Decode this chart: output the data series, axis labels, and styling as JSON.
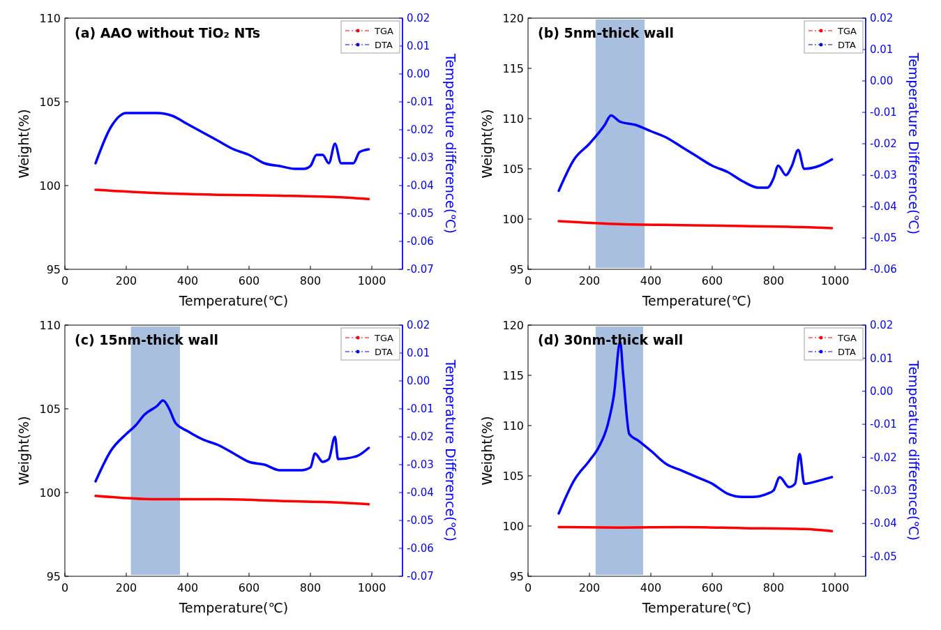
{
  "chart_data": [
    {
      "type": "line",
      "title": "(a) AAO without TiO₂ NTs",
      "xlabel": "Temperature(℃)",
      "ylabel": "Weight(%)",
      "y2label": "Temperature difference(℃)",
      "xlim": [
        0,
        1100
      ],
      "xticks": [
        0,
        200,
        400,
        600,
        800,
        1000
      ],
      "ylim": [
        95,
        110
      ],
      "yticks": [
        95,
        100,
        105,
        110
      ],
      "y2lim": [
        -0.07,
        0.02
      ],
      "y2ticks": [
        {
          "value": 0.02,
          "label": "0.02"
        },
        {
          "value": 0.01,
          "label": "0.01"
        },
        {
          "value": 0,
          "label": "0.00"
        },
        {
          "value": -0.01,
          "label": "-0.01"
        },
        {
          "value": -0.02,
          "label": "-0.02"
        },
        {
          "value": -0.03,
          "label": "-0.03"
        },
        {
          "value": -0.04,
          "label": "-0.04"
        },
        {
          "value": -0.05,
          "label": "-0.05"
        },
        {
          "value": -0.06,
          "label": "-0.06"
        },
        {
          "value": -0.07,
          "label": "-0.07"
        }
      ],
      "legend": "top right",
      "series": [
        {
          "name": "TGA",
          "color": "#ff0000",
          "x": [
            100,
            300,
            500,
            700,
            900,
            990
          ],
          "values": [
            99.75,
            99.55,
            99.45,
            99.4,
            99.3,
            99.2
          ]
        },
        {
          "name": "DTA",
          "color": "#0000ff",
          "axis": "y2",
          "x": [
            100,
            150,
            200,
            250,
            300,
            350,
            400,
            450,
            500,
            550,
            600,
            650,
            700,
            750,
            780,
            800,
            820,
            840,
            860,
            880,
            900,
            940,
            960,
            990
          ],
          "values": [
            -0.032,
            -0.019,
            -0.014,
            -0.014,
            -0.014,
            -0.015,
            -0.018,
            -0.021,
            -0.024,
            -0.027,
            -0.029,
            -0.032,
            -0.033,
            -0.034,
            -0.034,
            -0.033,
            -0.029,
            -0.029,
            -0.032,
            -0.025,
            -0.032,
            -0.032,
            -0.028,
            -0.027
          ]
        }
      ]
    },
    {
      "type": "line",
      "title": "(b) 5nm-thick wall",
      "xlabel": "Temperature(℃)",
      "ylabel": "Weight(%)",
      "y2label": "Temperature Difference(℃)",
      "xlim": [
        0,
        1100
      ],
      "xticks": [
        0,
        200,
        400,
        600,
        800,
        1000
      ],
      "ylim": [
        95,
        120
      ],
      "yticks": [
        95,
        100,
        105,
        110,
        115,
        120
      ],
      "y2lim": [
        -0.06,
        0.02
      ],
      "y2ticks": [
        {
          "value": 0.02,
          "label": "0.02"
        },
        {
          "value": 0.01,
          "label": "0.01"
        },
        {
          "value": 0,
          "label": "0.00"
        },
        {
          "value": -0.01,
          "label": "-0.01"
        },
        {
          "value": -0.02,
          "label": "-0.02"
        },
        {
          "value": -0.03,
          "label": "-0.03"
        },
        {
          "value": -0.04,
          "label": "-0.04"
        },
        {
          "value": -0.05,
          "label": "-0.05"
        },
        {
          "value": -0.06,
          "label": "-0.06"
        }
      ],
      "legend": "top right",
      "bands": [
        {
          "axis": "x",
          "from": 220,
          "to": 380,
          "color": "#a9bfe0"
        }
      ],
      "series": [
        {
          "name": "TGA",
          "color": "#ff0000",
          "x": [
            100,
            300,
            500,
            700,
            900,
            990
          ],
          "values": [
            99.8,
            99.5,
            99.4,
            99.3,
            99.2,
            99.1
          ]
        },
        {
          "name": "DTA",
          "color": "#0000ff",
          "axis": "y2",
          "x": [
            100,
            150,
            200,
            250,
            270,
            300,
            350,
            400,
            450,
            500,
            550,
            600,
            650,
            700,
            750,
            780,
            800,
            815,
            840,
            860,
            880,
            900,
            950,
            990
          ],
          "values": [
            -0.035,
            -0.025,
            -0.02,
            -0.014,
            -0.011,
            -0.013,
            -0.014,
            -0.016,
            -0.018,
            -0.021,
            -0.024,
            -0.027,
            -0.029,
            -0.032,
            -0.034,
            -0.034,
            -0.031,
            -0.027,
            -0.03,
            -0.027,
            -0.022,
            -0.028,
            -0.027,
            -0.025
          ]
        }
      ]
    },
    {
      "type": "line",
      "title": "(c) 15nm-thick wall",
      "xlabel": "Temperature(℃)",
      "ylabel": "Weight(%)",
      "y2label": "Temperature Difference(℃)",
      "xlim": [
        0,
        1100
      ],
      "xticks": [
        0,
        200,
        400,
        600,
        800,
        1000
      ],
      "ylim": [
        95,
        110
      ],
      "yticks": [
        95,
        100,
        105,
        110
      ],
      "y2lim": [
        -0.07,
        0.02
      ],
      "y2ticks": [
        {
          "value": 0.02,
          "label": "0.02"
        },
        {
          "value": 0.01,
          "label": "0.01"
        },
        {
          "value": 0,
          "label": "0.00"
        },
        {
          "value": -0.01,
          "label": "-0.01"
        },
        {
          "value": -0.02,
          "label": "-0.02"
        },
        {
          "value": -0.03,
          "label": "-0.03"
        },
        {
          "value": -0.04,
          "label": "-0.04"
        },
        {
          "value": -0.05,
          "label": "-0.05"
        },
        {
          "value": -0.06,
          "label": "-0.06"
        },
        {
          "value": -0.07,
          "label": "-0.07"
        }
      ],
      "legend": "top right",
      "bands": [
        {
          "axis": "x",
          "from": 215,
          "to": 375,
          "color": "#a9bfe0"
        }
      ],
      "series": [
        {
          "name": "TGA",
          "color": "#ff0000",
          "x": [
            100,
            300,
            500,
            700,
            900,
            990
          ],
          "values": [
            99.8,
            99.6,
            99.6,
            99.5,
            99.4,
            99.3
          ]
        },
        {
          "name": "DTA",
          "color": "#0000ff",
          "axis": "y2",
          "x": [
            100,
            150,
            200,
            230,
            260,
            300,
            320,
            340,
            360,
            400,
            450,
            500,
            550,
            600,
            650,
            700,
            750,
            770,
            800,
            815,
            840,
            860,
            880,
            890,
            950,
            990
          ],
          "values": [
            -0.036,
            -0.025,
            -0.019,
            -0.016,
            -0.012,
            -0.009,
            -0.007,
            -0.01,
            -0.015,
            -0.018,
            -0.021,
            -0.023,
            -0.026,
            -0.029,
            -0.03,
            -0.032,
            -0.032,
            -0.032,
            -0.031,
            -0.026,
            -0.029,
            -0.028,
            -0.02,
            -0.028,
            -0.027,
            -0.024
          ]
        }
      ]
    },
    {
      "type": "line",
      "title": "(d) 30nm-thick wall",
      "xlabel": "Temperature(℃)",
      "ylabel": "Weight(%)",
      "y2label": "Temperature difference(℃)",
      "xlim": [
        0,
        1100
      ],
      "xticks": [
        0,
        200,
        400,
        600,
        800,
        1000
      ],
      "ylim": [
        95,
        120
      ],
      "yticks": [
        95,
        100,
        105,
        110,
        115,
        120
      ],
      "y2lim": [
        -0.056,
        0.02
      ],
      "y2ticks": [
        {
          "value": 0.02,
          "label": "0.02"
        },
        {
          "value": 0.01,
          "label": "0.01"
        },
        {
          "value": 0,
          "label": "0.00"
        },
        {
          "value": -0.01,
          "label": "-0.01"
        },
        {
          "value": -0.02,
          "label": "-0.02"
        },
        {
          "value": -0.03,
          "label": "-0.03"
        },
        {
          "value": -0.04,
          "label": "-0.04"
        },
        {
          "value": -0.05,
          "label": "-0.05"
        }
      ],
      "legend": "top right",
      "bands": [
        {
          "axis": "x",
          "from": 220,
          "to": 375,
          "color": "#a9bfe0"
        }
      ],
      "series": [
        {
          "name": "TGA",
          "color": "#ff0000",
          "x": [
            100,
            300,
            500,
            700,
            900,
            990
          ],
          "values": [
            99.9,
            99.85,
            99.9,
            99.8,
            99.7,
            99.5
          ]
        },
        {
          "name": "DTA",
          "color": "#0000ff",
          "axis": "y2",
          "x": [
            100,
            150,
            200,
            230,
            260,
            280,
            300,
            310,
            330,
            360,
            400,
            450,
            500,
            550,
            600,
            650,
            700,
            730,
            780,
            800,
            820,
            850,
            870,
            885,
            900,
            950,
            990
          ],
          "values": [
            -0.037,
            -0.027,
            -0.021,
            -0.017,
            -0.01,
            -0.001,
            0.015,
            0.005,
            -0.013,
            -0.015,
            -0.018,
            -0.022,
            -0.024,
            -0.026,
            -0.028,
            -0.031,
            -0.032,
            -0.032,
            -0.031,
            -0.03,
            -0.026,
            -0.029,
            -0.028,
            -0.019,
            -0.028,
            -0.027,
            -0.026
          ]
        }
      ]
    }
  ]
}
